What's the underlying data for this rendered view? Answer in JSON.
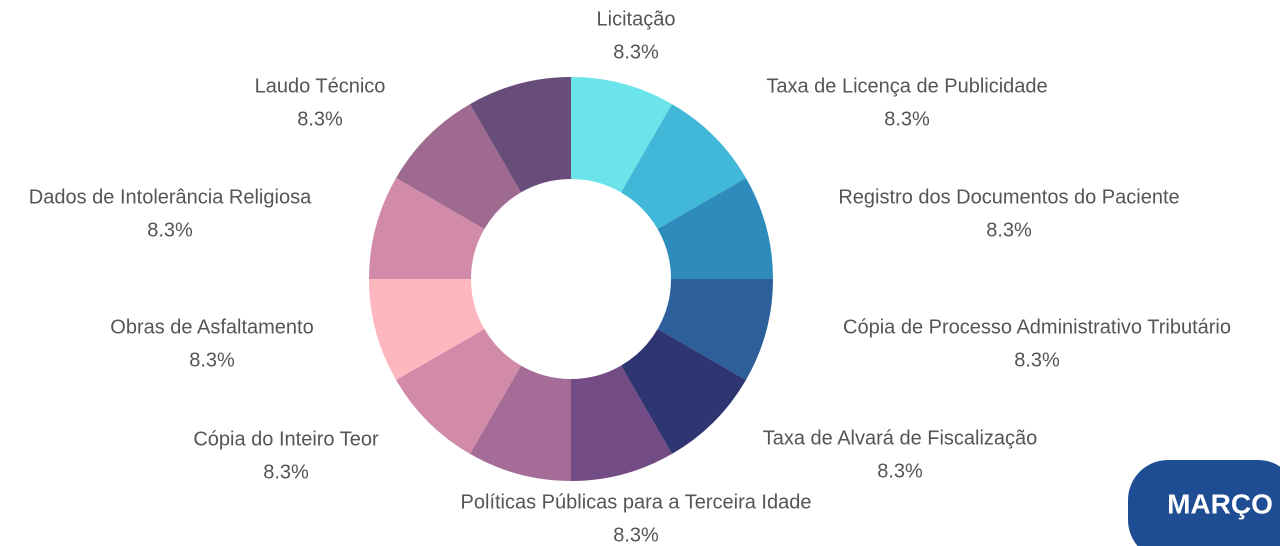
{
  "chart_data": {
    "type": "donut",
    "categories": [
      "Licitação",
      "Taxa de Licença de Publicidade",
      "Registro dos Documentos do Paciente",
      "Cópia de Processo Administrativo Tributário",
      "Taxa de Alvará de Fiscalização",
      "Políticas Públicas para a Terceira Idade",
      null,
      "Cópia do Inteiro Teor",
      "Obras de Asfaltamento",
      "Dados de Intolerância Religiosa",
      "Laudo Técnico",
      null
    ],
    "values": [
      8.3,
      8.3,
      8.3,
      8.3,
      8.3,
      8.3,
      8.3,
      8.3,
      8.3,
      8.3,
      8.3,
      8.3
    ],
    "value_labels": [
      "8.3%",
      "8.3%",
      "8.3%",
      "8.3%",
      "8.3%",
      "8.3%",
      null,
      "8.3%",
      "8.3%",
      "8.3%",
      "8.3%",
      null
    ],
    "colors": [
      "#6ae4e9",
      "#41b8d8",
      "#2e8cbd",
      "#2d5f9b",
      "#2e3570",
      "#734c86",
      "#a46c97",
      "#d18aa7",
      "#fdb7bf",
      "#d18aa7",
      "#9e6a8f",
      "#684d7a"
    ]
  },
  "button": "MARÇO"
}
